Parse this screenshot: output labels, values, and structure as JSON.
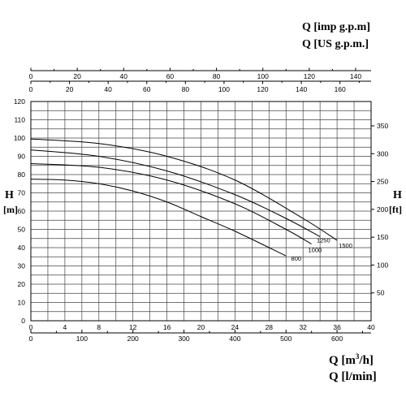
{
  "labels": {
    "top_unit_1": "Q [imp g.p.m]",
    "top_unit_2": "Q [US g.p.m.]",
    "left_unit_1": "H",
    "left_unit_2": "[m]",
    "right_unit_1": "H",
    "right_unit_2": "[ft]",
    "bottom_unit_1_base": "Q [m",
    "bottom_unit_1_sup": "3",
    "bottom_unit_1_end": "/h]",
    "bottom_unit_2": "Q [l/min]"
  },
  "chart_data": {
    "type": "line",
    "title": "",
    "x_m3h": {
      "range": [
        0,
        40
      ],
      "ticks": [
        0,
        4,
        8,
        12,
        16,
        20,
        24,
        28,
        32,
        36,
        40
      ]
    },
    "x_lmin": {
      "ticks": [
        0,
        100,
        200,
        300,
        400,
        500,
        600
      ]
    },
    "x_imp_gpm": {
      "ticks": [
        0,
        20,
        40,
        60,
        80,
        100,
        120,
        140
      ]
    },
    "x_us_gpm": {
      "ticks": [
        0,
        20,
        40,
        60,
        80,
        100,
        120,
        140,
        160
      ]
    },
    "y_m": {
      "range": [
        0,
        120
      ],
      "ticks": [
        0,
        10,
        20,
        30,
        40,
        50,
        60,
        70,
        80,
        90,
        100,
        110,
        120
      ]
    },
    "y_ft": {
      "ticks": [
        50,
        100,
        150,
        200,
        250,
        300,
        350
      ]
    },
    "grid": true,
    "series": [
      {
        "name": "1500",
        "x": [
          0,
          8,
          16,
          24,
          32,
          36
        ],
        "y": [
          99.5,
          97,
          90,
          77,
          56,
          44
        ]
      },
      {
        "name": "1250",
        "x": [
          0,
          8,
          16,
          24,
          30,
          34
        ],
        "y": [
          93.5,
          90,
          82,
          69,
          56,
          46
        ]
      },
      {
        "name": "1000",
        "x": [
          0,
          8,
          16,
          24,
          30,
          33
        ],
        "y": [
          86,
          84,
          77,
          64,
          50,
          42
        ]
      },
      {
        "name": "800",
        "x": [
          0,
          4,
          8,
          12,
          16,
          20,
          24,
          30
        ],
        "y": [
          77.5,
          77,
          75,
          71,
          65,
          57,
          49,
          35.5
        ]
      }
    ],
    "series_label_positions": [
      {
        "name": "1500",
        "x": 36.2,
        "y": 40
      },
      {
        "name": "1250",
        "x": 33.6,
        "y": 43
      },
      {
        "name": "1000",
        "x": 32.6,
        "y": 37.5
      },
      {
        "name": "800",
        "x": 30.6,
        "y": 33
      }
    ]
  }
}
